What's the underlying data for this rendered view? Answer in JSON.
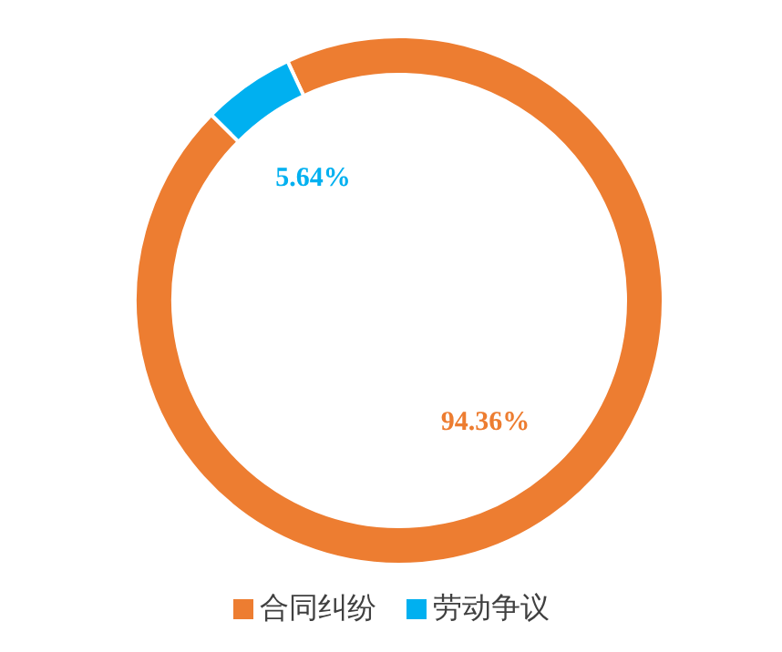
{
  "chart_data": {
    "type": "donut",
    "categories": [
      "合同纠纷",
      "劳动争议"
    ],
    "values": [
      94.36,
      5.64
    ],
    "colors": [
      "#ed7d31",
      "#00b0f0"
    ],
    "value_labels": [
      "94.36%",
      "5.64%"
    ],
    "legend": "bottom"
  }
}
